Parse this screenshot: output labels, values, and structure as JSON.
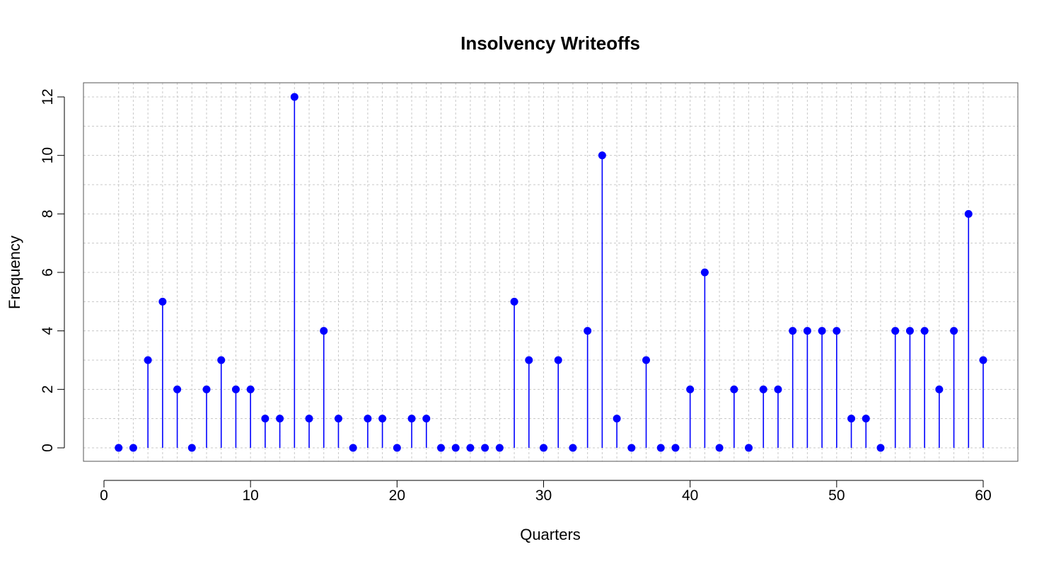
{
  "chart_data": {
    "type": "scatter",
    "style": "lollipop",
    "title": "Insolvency Writeoffs",
    "xlabel": "Quarters",
    "ylabel": "Frequency",
    "xlim": [
      1,
      60
    ],
    "ylim": [
      0,
      12
    ],
    "x_ticks": [
      0,
      10,
      20,
      30,
      40,
      50,
      60
    ],
    "y_ticks": [
      0,
      2,
      4,
      6,
      8,
      10,
      12
    ],
    "grid": true,
    "x": [
      1,
      2,
      3,
      4,
      5,
      6,
      7,
      8,
      9,
      10,
      11,
      12,
      13,
      14,
      15,
      16,
      17,
      18,
      19,
      20,
      21,
      22,
      23,
      24,
      25,
      26,
      27,
      28,
      29,
      30,
      31,
      32,
      33,
      34,
      35,
      36,
      37,
      38,
      39,
      40,
      41,
      42,
      43,
      44,
      45,
      46,
      47,
      48,
      49,
      50,
      51,
      52,
      53,
      54,
      55,
      56,
      57,
      58,
      59,
      60
    ],
    "y": [
      0,
      0,
      3,
      5,
      2,
      0,
      2,
      3,
      2,
      2,
      1,
      1,
      12,
      1,
      4,
      1,
      0,
      1,
      1,
      0,
      1,
      1,
      0,
      0,
      0,
      0,
      0,
      5,
      3,
      0,
      3,
      0,
      4,
      10,
      1,
      0,
      3,
      0,
      0,
      2,
      6,
      0,
      2,
      0,
      2,
      2,
      4,
      4,
      4,
      4,
      1,
      1,
      0,
      4,
      4,
      4,
      2,
      4,
      8,
      3
    ],
    "color": "#0000ff",
    "grid_color": "#c8c8c8"
  }
}
